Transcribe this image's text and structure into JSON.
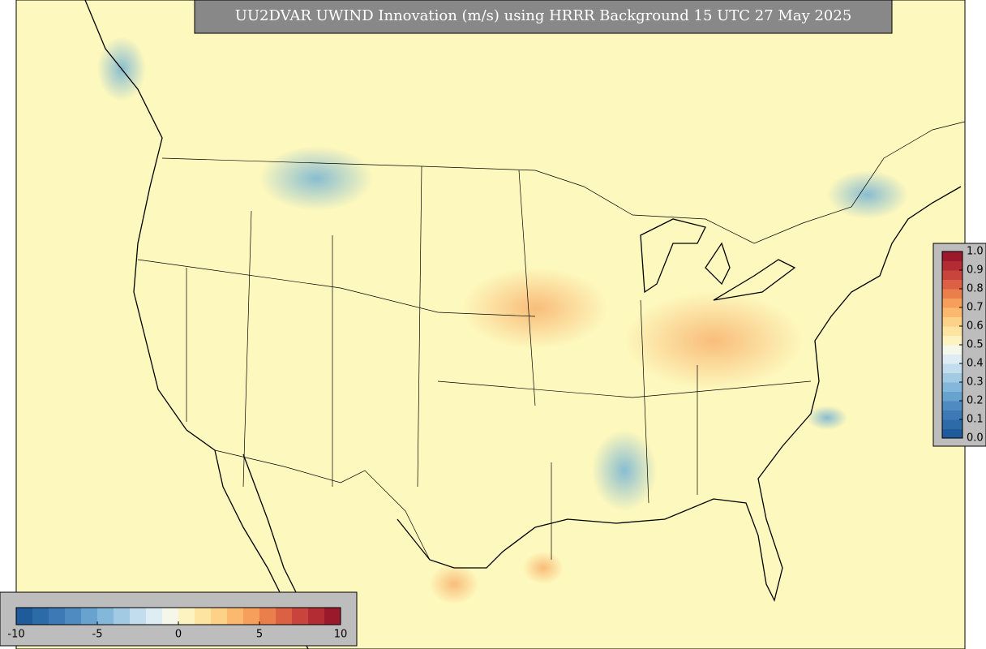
{
  "title": "UU2DVAR UWIND Innovation (m/s) using HRRR Background 15 UTC 27 May 2025",
  "colormap": [
    "#1f5a9a",
    "#2d6aa8",
    "#3d7ab5",
    "#4f8bc1",
    "#68a3cf",
    "#84b8da",
    "#a2cbe3",
    "#c2dded",
    "#ddedf3",
    "#f4f7e9",
    "#fdf3c0",
    "#fde4a0",
    "#fdd187",
    "#fbb970",
    "#f69e5c",
    "#ea7f4c",
    "#dc6044",
    "#c9443c",
    "#b32c34",
    "#9a1a2c"
  ],
  "horizontal_colorbar": {
    "lim": [
      -10,
      10
    ],
    "ticks": [
      -10,
      -5,
      0,
      5,
      10
    ]
  },
  "vertical_colorbar": {
    "lim": [
      0,
      1
    ],
    "ticks": [
      {
        "value": 0,
        "label": "0.0"
      },
      0.1,
      0.2,
      0.3,
      0.4,
      0.5,
      0.6,
      0.7,
      0.8,
      0.9,
      {
        "value": 1,
        "label": "1.0"
      }
    ]
  }
}
